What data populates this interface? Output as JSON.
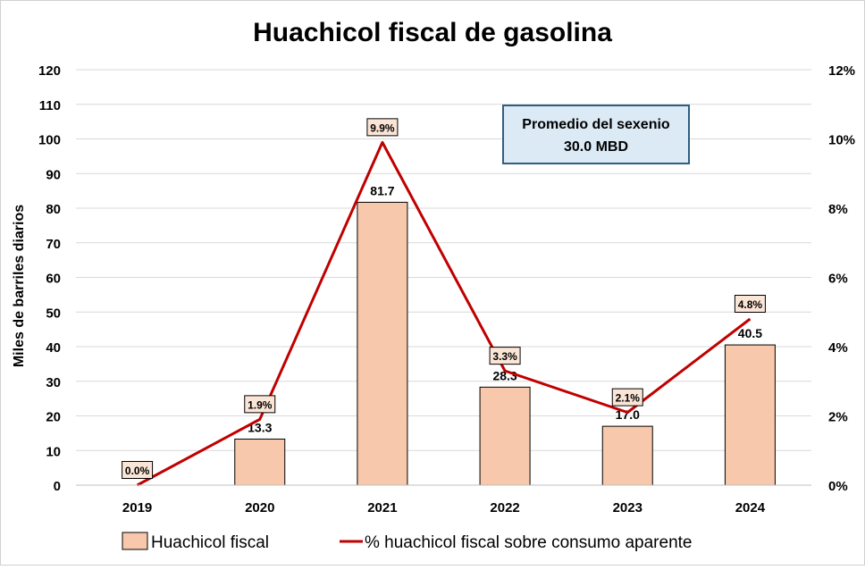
{
  "chart_data": {
    "type": "bar+line",
    "title": "Huachicol fiscal de gasolina",
    "ylabel": "Miles de barriles diarios",
    "y2label": "",
    "categories": [
      "2019",
      "2020",
      "2021",
      "2022",
      "2023",
      "2024"
    ],
    "ylim": [
      0,
      120
    ],
    "y_ticks": [
      "0",
      "10",
      "20",
      "30",
      "40",
      "50",
      "60",
      "70",
      "80",
      "90",
      "100",
      "110",
      "120"
    ],
    "y2lim": [
      0,
      12
    ],
    "y2_ticks": [
      "0%",
      "2%",
      "4%",
      "6%",
      "8%",
      "10%",
      "12%"
    ],
    "grid": true,
    "legend_position": "bottom",
    "series": [
      {
        "name": "Huachicol fiscal",
        "type": "bar",
        "color": "#f8c8ad",
        "values": [
          0,
          13.3,
          81.7,
          28.3,
          17.0,
          40.5
        ],
        "labels": [
          "",
          "13.3",
          "81.7",
          "28.3",
          "17.0",
          "40.5"
        ]
      },
      {
        "name": "% huachicol fiscal sobre consumo aparente",
        "type": "line",
        "axis": "right",
        "color": "#c00000",
        "values": [
          0.0,
          1.9,
          9.9,
          3.3,
          2.1,
          4.8
        ],
        "labels": [
          "0.0%",
          "1.9%",
          "9.9%",
          "3.3%",
          "2.1%",
          "4.8%"
        ]
      }
    ],
    "annotation": {
      "line1": "Promedio del sexenio",
      "line2": "30.0 MBD"
    }
  }
}
